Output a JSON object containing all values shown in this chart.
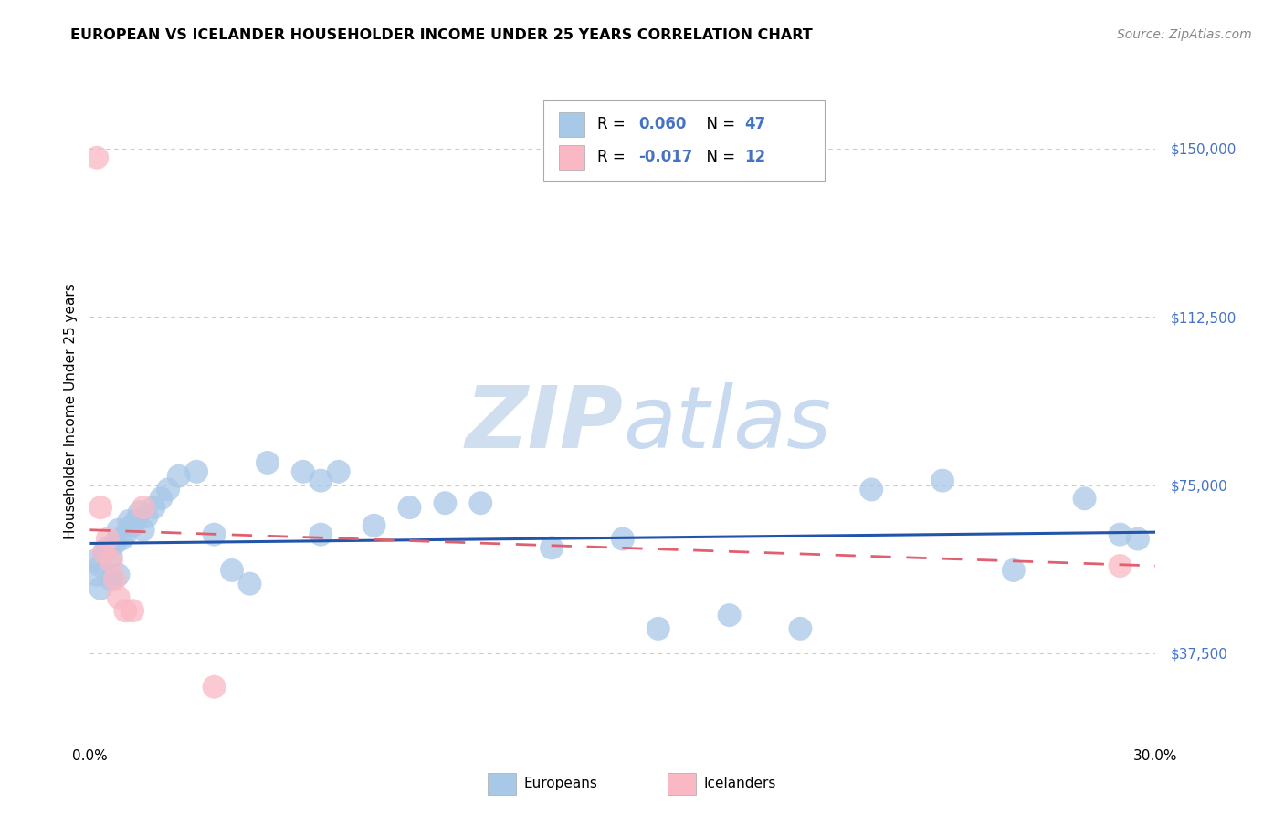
{
  "title": "EUROPEAN VS ICELANDER HOUSEHOLDER INCOME UNDER 25 YEARS CORRELATION CHART",
  "source": "Source: ZipAtlas.com",
  "ylabel": "Householder Income Under 25 years",
  "xlim": [
    0.0,
    0.3
  ],
  "ylim": [
    18000,
    165000
  ],
  "yticks": [
    37500,
    75000,
    112500,
    150000
  ],
  "ytick_labels": [
    "$37,500",
    "$75,000",
    "$112,500",
    "$150,000"
  ],
  "xticks": [
    0.0,
    0.05,
    0.1,
    0.15,
    0.2,
    0.25,
    0.3
  ],
  "xtick_labels": [
    "0.0%",
    "",
    "",
    "",
    "",
    "",
    "30.0%"
  ],
  "european_color": "#a8c8e8",
  "icelander_color": "#f9b8c4",
  "european_line_color": "#2255aa",
  "icelander_line_color": "#e06070",
  "watermark_color": "#d0dff0",
  "background_color": "#ffffff",
  "grid_color": "#cccccc",
  "european_x": [
    0.001,
    0.002,
    0.003,
    0.003,
    0.004,
    0.005,
    0.006,
    0.006,
    0.007,
    0.008,
    0.008,
    0.009,
    0.01,
    0.011,
    0.012,
    0.013,
    0.014,
    0.015,
    0.016,
    0.018,
    0.02,
    0.022,
    0.025,
    0.03,
    0.035,
    0.04,
    0.045,
    0.05,
    0.06,
    0.065,
    0.08,
    0.09,
    0.11,
    0.13,
    0.15,
    0.16,
    0.18,
    0.2,
    0.22,
    0.24,
    0.26,
    0.28,
    0.29,
    0.295,
    0.065,
    0.07,
    0.1
  ],
  "european_y": [
    58000,
    55000,
    57000,
    52000,
    60000,
    61000,
    59000,
    54000,
    62000,
    65000,
    55000,
    63000,
    64000,
    67000,
    66000,
    67000,
    69000,
    65000,
    68000,
    70000,
    72000,
    74000,
    77000,
    78000,
    64000,
    56000,
    53000,
    80000,
    78000,
    76000,
    66000,
    70000,
    71000,
    61000,
    63000,
    43000,
    46000,
    43000,
    74000,
    76000,
    56000,
    72000,
    64000,
    63000,
    64000,
    78000,
    71000
  ],
  "icelander_x": [
    0.002,
    0.003,
    0.004,
    0.005,
    0.006,
    0.007,
    0.008,
    0.01,
    0.012,
    0.015,
    0.035,
    0.29
  ],
  "icelander_y": [
    148000,
    70000,
    60000,
    63000,
    58000,
    54000,
    50000,
    47000,
    47000,
    70000,
    30000,
    57000
  ],
  "eu_line_x": [
    0.0,
    0.3
  ],
  "eu_line_y": [
    62000,
    64500
  ],
  "ic_line_x": [
    0.0,
    0.3
  ],
  "ic_line_y": [
    65000,
    57000
  ]
}
